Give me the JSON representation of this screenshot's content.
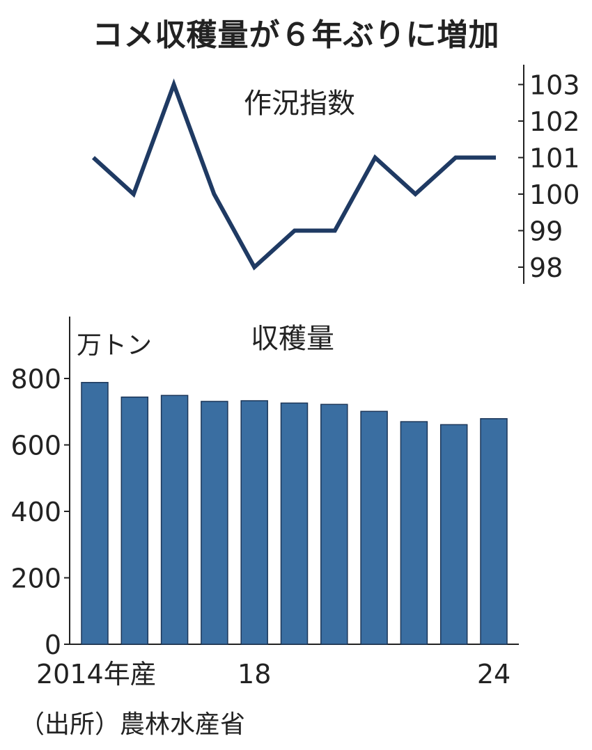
{
  "title": "コメ収穫量が６年ぶりに増加",
  "source": "（出所）農林水産省",
  "colors": {
    "line": "#1f3a63",
    "bar": "#3a6ea1",
    "bar_stroke": "#1c3658",
    "axis": "#222222"
  },
  "chart_data": [
    {
      "type": "line",
      "title": "作況指数",
      "x": [
        2014,
        2015,
        2016,
        2017,
        2018,
        2019,
        2020,
        2021,
        2022,
        2023,
        2024
      ],
      "values": [
        101,
        100,
        103,
        100,
        98,
        99,
        99,
        101,
        100,
        101,
        101
      ],
      "ylim": [
        97.7,
        103.5
      ],
      "yticks": [
        98,
        99,
        100,
        101,
        102,
        103
      ],
      "ytick_labels": [
        "98",
        "99",
        "100",
        "101",
        "102",
        "103"
      ],
      "yaxis_side": "right",
      "grid": false
    },
    {
      "type": "bar",
      "title": "収穫量",
      "ylabel": "万トン",
      "categories": [
        "2014",
        "2015",
        "2016",
        "2017",
        "2018",
        "2019",
        "2020",
        "2021",
        "2022",
        "2023",
        "2024"
      ],
      "values": [
        788,
        744,
        749,
        731,
        733,
        726,
        722,
        701,
        670,
        661,
        679
      ],
      "ylim": [
        0,
        980
      ],
      "yticks": [
        0,
        200,
        400,
        600,
        800
      ],
      "ytick_labels": [
        "0",
        "200",
        "400",
        "600",
        "800"
      ],
      "xtick_labels": [
        {
          "index": 0,
          "label": "2014年産"
        },
        {
          "index": 4,
          "label": "18"
        },
        {
          "index": 10,
          "label": "24"
        }
      ],
      "grid": false
    }
  ]
}
